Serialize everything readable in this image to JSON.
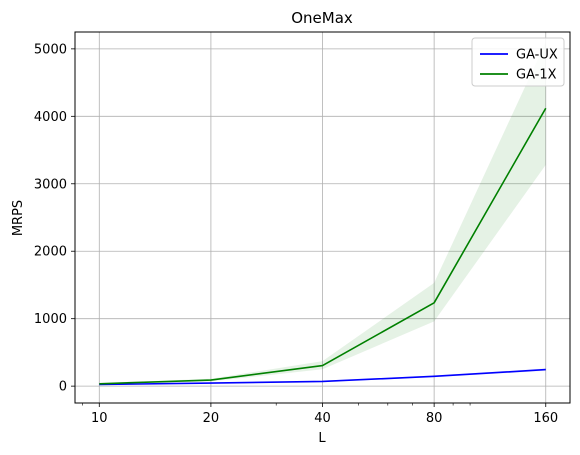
{
  "chart_data": {
    "type": "line",
    "title": "OneMax",
    "xlabel": "L",
    "ylabel": "MRPS",
    "x_scale": "log2",
    "x": [
      10,
      20,
      40,
      80,
      160
    ],
    "x_tick_labels": [
      "10",
      "20",
      "40",
      "80",
      "160"
    ],
    "xlim": [
      8.6,
      186
    ],
    "ylim": [
      -250,
      5250
    ],
    "y_ticks": [
      0,
      1000,
      2000,
      3000,
      4000,
      5000
    ],
    "y_tick_labels": [
      "0",
      "1000",
      "2000",
      "3000",
      "4000",
      "5000"
    ],
    "grid": true,
    "legend_position": "top-right",
    "series": [
      {
        "name": "GA-UX",
        "color": "#0000ff",
        "values": [
          25,
          45,
          70,
          145,
          245
        ],
        "band_lower": [
          22,
          40,
          62,
          132,
          228
        ],
        "band_upper": [
          28,
          50,
          78,
          158,
          262
        ]
      },
      {
        "name": "GA-1X",
        "color": "#008000",
        "values": [
          35,
          90,
          305,
          1235,
          4120
        ],
        "band_lower": [
          25,
          70,
          250,
          960,
          3280
        ],
        "band_upper": [
          45,
          110,
          370,
          1530,
          5100
        ]
      }
    ]
  }
}
